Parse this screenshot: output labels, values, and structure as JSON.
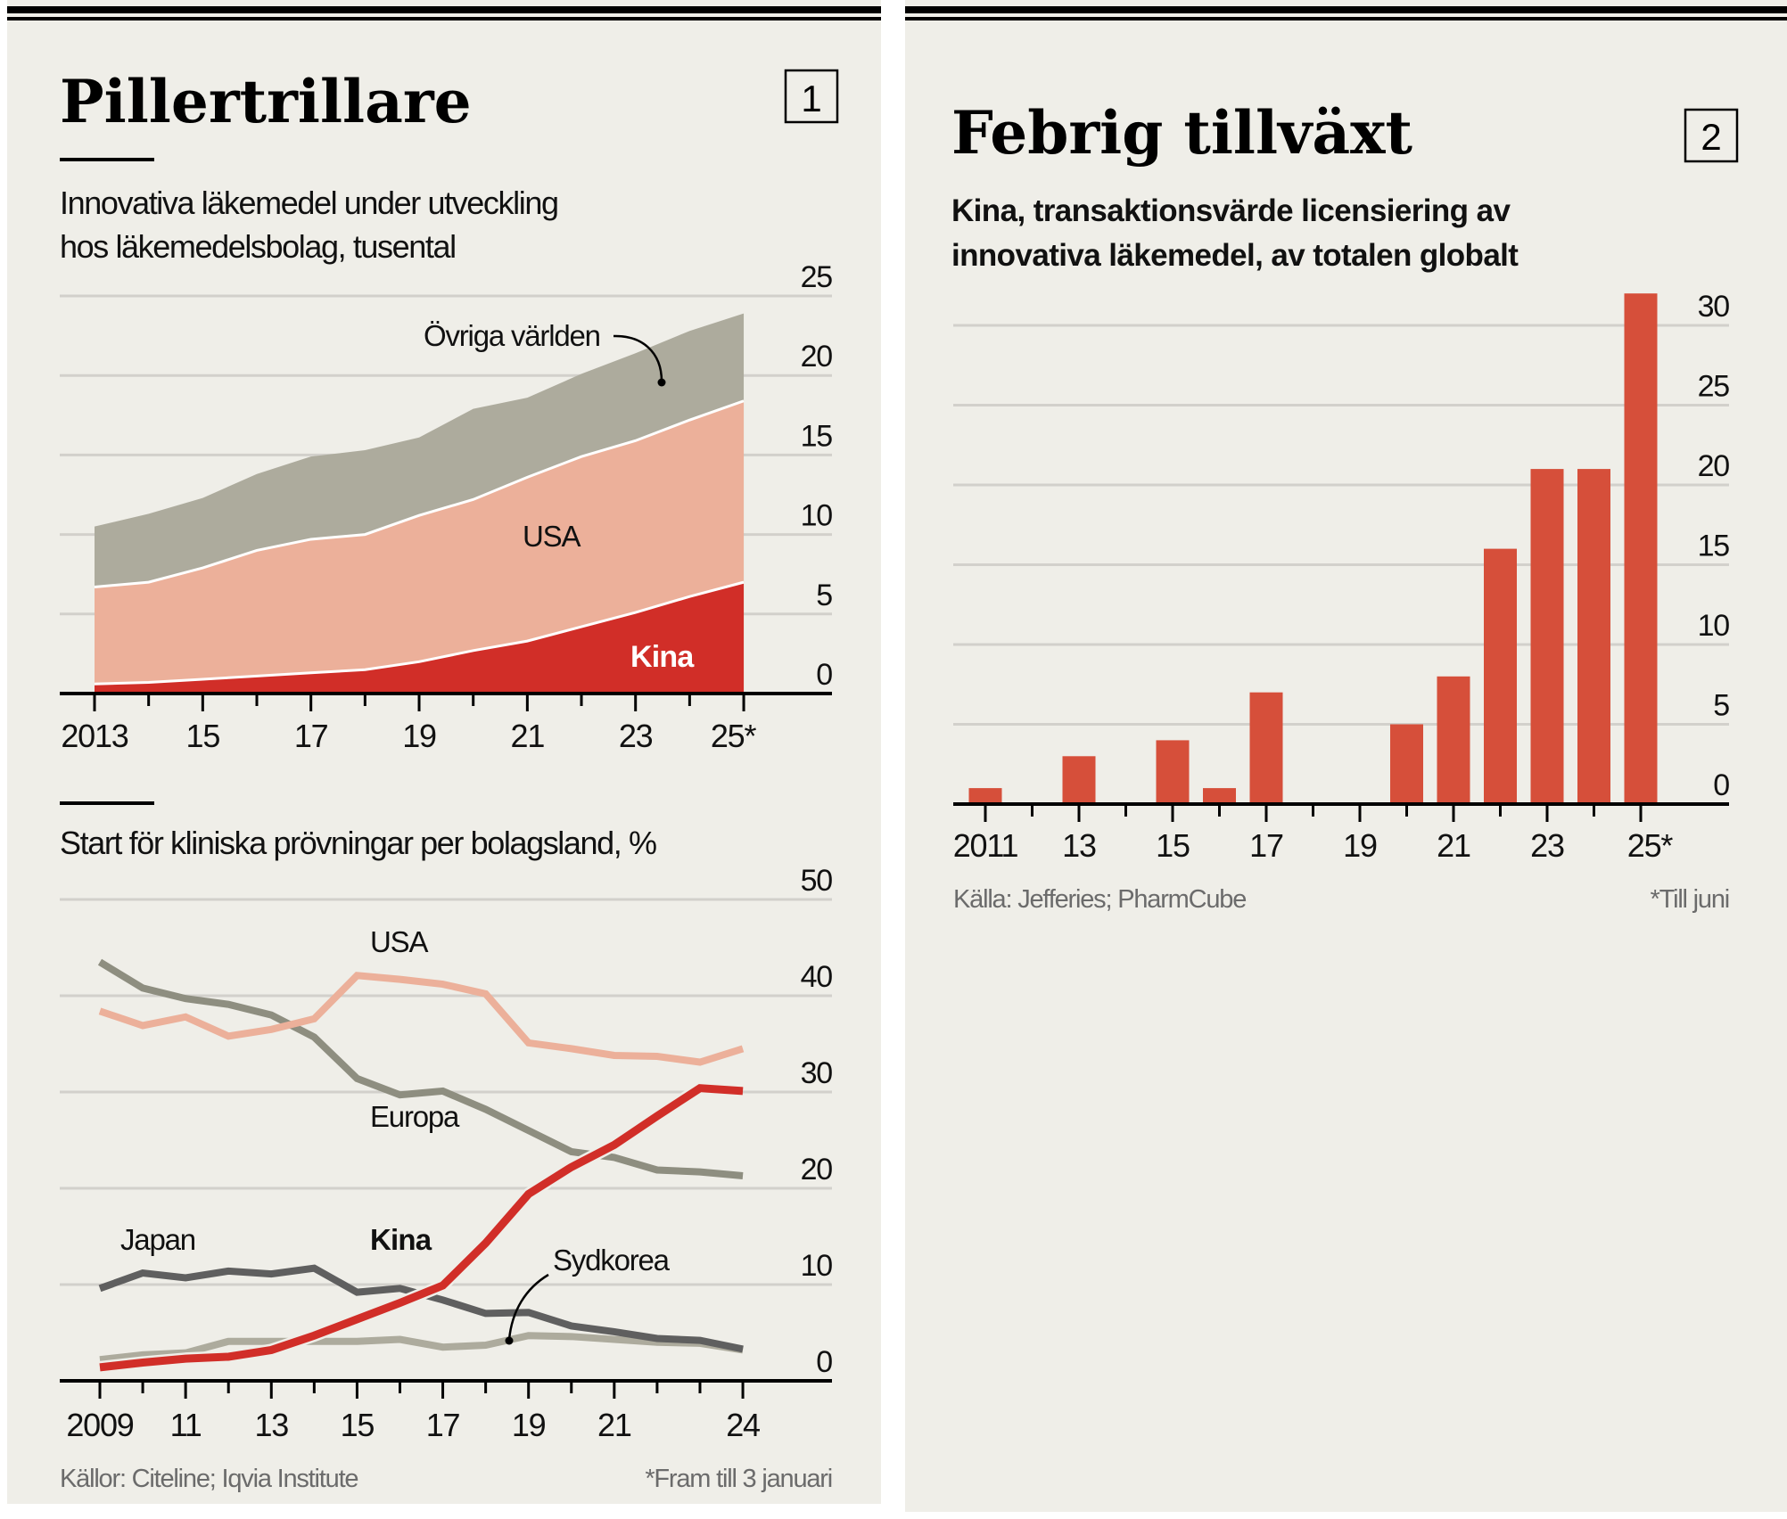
{
  "panel1": {
    "title": "Pillertrillare",
    "number": "1",
    "source": "Källor: Citeline; Iqvia Institute",
    "footnote": "*Fram till 3 januari"
  },
  "panel2": {
    "title": "Febrig tillväxt",
    "number": "2",
    "source": "Källa: Jefferies; PharmCube",
    "footnote": "*Till juni"
  },
  "colors": {
    "background": "#efeee8",
    "ovriga": "#adab9d",
    "usa_area": "#ecb09a",
    "kina_area": "#d12e28",
    "bar": "#d64f3a",
    "usa_line": "#ecb09a",
    "europa_line": "#8e8e80",
    "japan_line": "#5f5f5f",
    "kina_line": "#d12e28",
    "sydkorea_line": "#adab9d",
    "grid": "#d2d0cb"
  },
  "chart_data": [
    {
      "type": "area",
      "stacked": true,
      "title": "Innovativa läkemedel under utveckling hos läkemedelsbolag, tusental",
      "subtitle_lines": [
        "Innovativa läkemedel under utveckling",
        "hos läkemedelsbolag, tusental"
      ],
      "x": [
        2013,
        2014,
        2015,
        2016,
        2017,
        2018,
        2019,
        2020,
        2021,
        2022,
        2023,
        2024,
        2025
      ],
      "x_tick_labels": [
        {
          "x": 2013,
          "label": "2013"
        },
        {
          "x": 2015,
          "label": "15"
        },
        {
          "x": 2017,
          "label": "17"
        },
        {
          "x": 2019,
          "label": "19"
        },
        {
          "x": 2021,
          "label": "21"
        },
        {
          "x": 2023,
          "label": "23"
        },
        {
          "x": 2025,
          "label": "25*"
        }
      ],
      "series": [
        {
          "name": "Kina",
          "label": "Kina",
          "values": [
            0.6,
            0.7,
            0.9,
            1.1,
            1.3,
            1.5,
            2.0,
            2.7,
            3.3,
            4.2,
            5.1,
            6.1,
            7.0
          ]
        },
        {
          "name": "USA",
          "label": "USA",
          "values": [
            6.1,
            6.3,
            7.0,
            7.9,
            8.4,
            8.5,
            9.2,
            9.5,
            10.3,
            10.7,
            10.8,
            11.1,
            11.4
          ]
        },
        {
          "name": "Övriga världen",
          "label": "Övriga världen",
          "values": [
            3.8,
            4.3,
            4.4,
            4.8,
            5.2,
            5.3,
            4.9,
            5.7,
            5.0,
            5.2,
            5.5,
            5.6,
            5.5
          ]
        }
      ],
      "cumulative_totals": [
        10.5,
        11.3,
        12.3,
        13.8,
        14.9,
        15.3,
        16.1,
        17.9,
        18.6,
        20.1,
        21.4,
        22.8,
        23.9
      ],
      "ylim": [
        0,
        25
      ],
      "yticks": [
        0,
        5,
        10,
        15,
        20,
        25
      ],
      "grid": true,
      "y_axis_side": "right"
    },
    {
      "type": "line",
      "title": "Start för kliniska prövningar per bolagsland, %",
      "x": [
        2009,
        2010,
        2011,
        2012,
        2013,
        2014,
        2015,
        2016,
        2017,
        2018,
        2019,
        2020,
        2021,
        2022,
        2023,
        2024
      ],
      "x_tick_labels": [
        {
          "x": 2009,
          "label": "2009"
        },
        {
          "x": 2011,
          "label": "11"
        },
        {
          "x": 2013,
          "label": "13"
        },
        {
          "x": 2015,
          "label": "15"
        },
        {
          "x": 2017,
          "label": "17"
        },
        {
          "x": 2019,
          "label": "19"
        },
        {
          "x": 2021,
          "label": "21"
        },
        {
          "x": 2024,
          "label": "24"
        }
      ],
      "series": [
        {
          "name": "Sydkorea",
          "label": "Sydkorea",
          "values": [
            2.2,
            2.7,
            2.9,
            4.1,
            4.1,
            4.1,
            4.1,
            4.3,
            3.5,
            3.7,
            4.7,
            4.6,
            4.3,
            4.0,
            3.9,
            3.2
          ]
        },
        {
          "name": "Japan",
          "label": "Japan",
          "values": [
            9.6,
            11.2,
            10.7,
            11.4,
            11.1,
            11.7,
            9.2,
            9.6,
            8.4,
            7.0,
            7.1,
            5.7,
            5.1,
            4.4,
            4.2,
            3.3
          ]
        },
        {
          "name": "Europa",
          "label": "Europa",
          "values": [
            43.5,
            40.8,
            39.7,
            39.1,
            38.0,
            35.7,
            31.4,
            29.7,
            30.1,
            28.2,
            26.0,
            23.8,
            23.2,
            21.9,
            21.7,
            21.3
          ]
        },
        {
          "name": "USA",
          "label": "USA",
          "values": [
            38.4,
            36.9,
            37.8,
            35.8,
            36.5,
            37.6,
            42.1,
            41.7,
            41.2,
            40.2,
            35.1,
            34.5,
            33.8,
            33.7,
            33.1,
            34.5
          ]
        },
        {
          "name": "Kina",
          "label": "Kina",
          "values": [
            1.4,
            1.9,
            2.3,
            2.5,
            3.2,
            4.7,
            6.4,
            8.1,
            9.9,
            14.3,
            19.4,
            22.2,
            24.5,
            27.5,
            30.4,
            30.1
          ]
        }
      ],
      "ylim": [
        0,
        50
      ],
      "yticks": [
        0,
        10,
        20,
        30,
        40,
        50
      ],
      "grid": true,
      "y_axis_side": "right"
    },
    {
      "type": "bar",
      "title": "Kina, transaktionsvärde licensiering av innovativa läkemedel, av totalen globalt",
      "subtitle_lines": [
        "Kina, transaktionsvärde licensiering av",
        "innovativa läkemedel, av totalen globalt"
      ],
      "categories": [
        2011,
        2012,
        2013,
        2014,
        2015,
        2016,
        2017,
        2018,
        2019,
        2020,
        2021,
        2022,
        2023,
        2024,
        2025
      ],
      "values": [
        1,
        0,
        3,
        0,
        4,
        1,
        7,
        0,
        0,
        5,
        8,
        16,
        21,
        21,
        32
      ],
      "x_tick_labels": [
        {
          "x": 2011,
          "label": "2011"
        },
        {
          "x": 2013,
          "label": "13"
        },
        {
          "x": 2015,
          "label": "15"
        },
        {
          "x": 2017,
          "label": "17"
        },
        {
          "x": 2019,
          "label": "19"
        },
        {
          "x": 2021,
          "label": "21"
        },
        {
          "x": 2023,
          "label": "23"
        },
        {
          "x": 2025,
          "label": "25*"
        }
      ],
      "ylim": [
        0,
        30
      ],
      "yticks": [
        0,
        5,
        10,
        15,
        20,
        25,
        30
      ],
      "grid": true,
      "y_axis_side": "right"
    }
  ]
}
